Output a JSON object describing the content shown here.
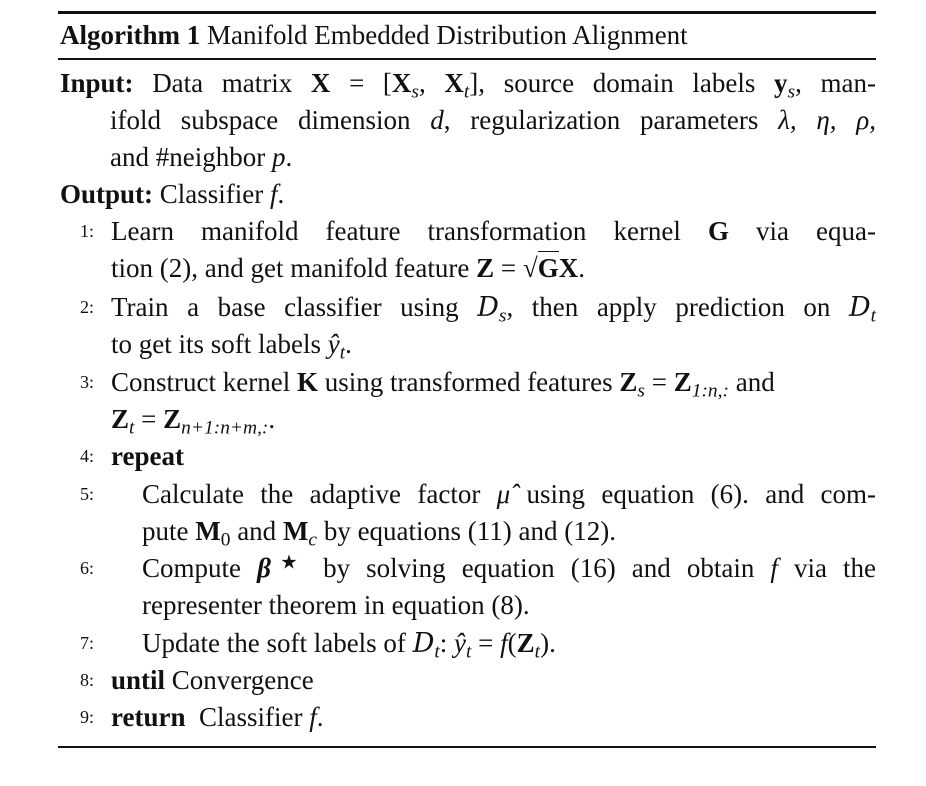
{
  "algorithm": {
    "label": "Algorithm 1",
    "title": "Manifold Embedded Distribution Alignment"
  },
  "input": {
    "keyword": "Input:",
    "text_a": "Data matrix",
    "text_b": ", source domain labels",
    "text_c": ", man-",
    "text_d": "ifold subspace dimension",
    "text_e": ", regularization parameters",
    "text_f": "and #neighbor",
    "symbols": {
      "X": "X",
      "eq": " = [",
      "Xs": "X",
      "s": "s",
      "comma": ", ",
      "Xt": "X",
      "t": "t",
      "close": "]",
      "ys": "y",
      "d": "d",
      "params": "λ, η, ρ,",
      "p": "p"
    }
  },
  "output": {
    "keyword": "Output:",
    "text": "Classifier",
    "f": "f"
  },
  "steps": [
    {
      "num": "1:"
    },
    {
      "num": "2:"
    },
    {
      "num": "3:"
    },
    {
      "num": "4:"
    },
    {
      "num": "5:"
    },
    {
      "num": "6:"
    },
    {
      "num": "7:"
    },
    {
      "num": "8:"
    },
    {
      "num": "9:"
    }
  ],
  "step_text": {
    "s1_a": "Learn manifold feature transformation kernel",
    "s1_G": "G",
    "s1_b": "via equa-",
    "s1_c": "tion (2), and get manifold feature",
    "s1_Z": "Z",
    "s1_eq": " = ",
    "s1_G2": "G",
    "s1_X": "X",
    "s1_end": ".",
    "s2_a": "Train a base classifier using",
    "s2_D": "D",
    "s2_b": ", then apply prediction on",
    "s2_c": "to get its soft labels",
    "s2_y": "ŷ",
    "s3_a": "Construct kernel",
    "s3_K": "K",
    "s3_b": "using transformed features",
    "s3_Zs": "Z",
    "s3_eq": " = ",
    "s3_Z1": "Z",
    "s3_sub1": "1:n,:",
    "s3_and": " and",
    "s3_Zt": "Z",
    "s3_eq2": " = ",
    "s3_Z2": "Z",
    "s3_sub2": "n+1:n+m,:",
    "s3_end": ".",
    "s4_kw": "repeat",
    "s5_a": "Calculate the adaptive factor",
    "s5_mu": "μ̂",
    "s5_b": "using equation (6). and com-",
    "s5_c": "pute",
    "s5_M0": "M",
    "s5_zero": "0",
    "s5_and": "and",
    "s5_Mc": "M",
    "s5_c_sub": "c",
    "s5_d": "by equations (11) and (12).",
    "s6_a": "Compute",
    "s6_beta": "β",
    "s6_star": "★",
    "s6_b": "by solving equation (16) and obtain",
    "s6_f": "f",
    "s6_c": "via the",
    "s6_d": "representer theorem in equation (8).",
    "s7_a": "Update the soft labels of",
    "s7_D": "D",
    "s7_colon": ": ",
    "s7_y": "ŷ",
    "s7_eq": " = ",
    "s7_f": "f",
    "s7_open": "(",
    "s7_Z": "Z",
    "s7_close": ").",
    "s8_kw": "until",
    "s8_text": "Convergence",
    "s9_kw": "return",
    "s9_text": "Classifier",
    "s9_f": "f",
    "s9_end": "."
  }
}
